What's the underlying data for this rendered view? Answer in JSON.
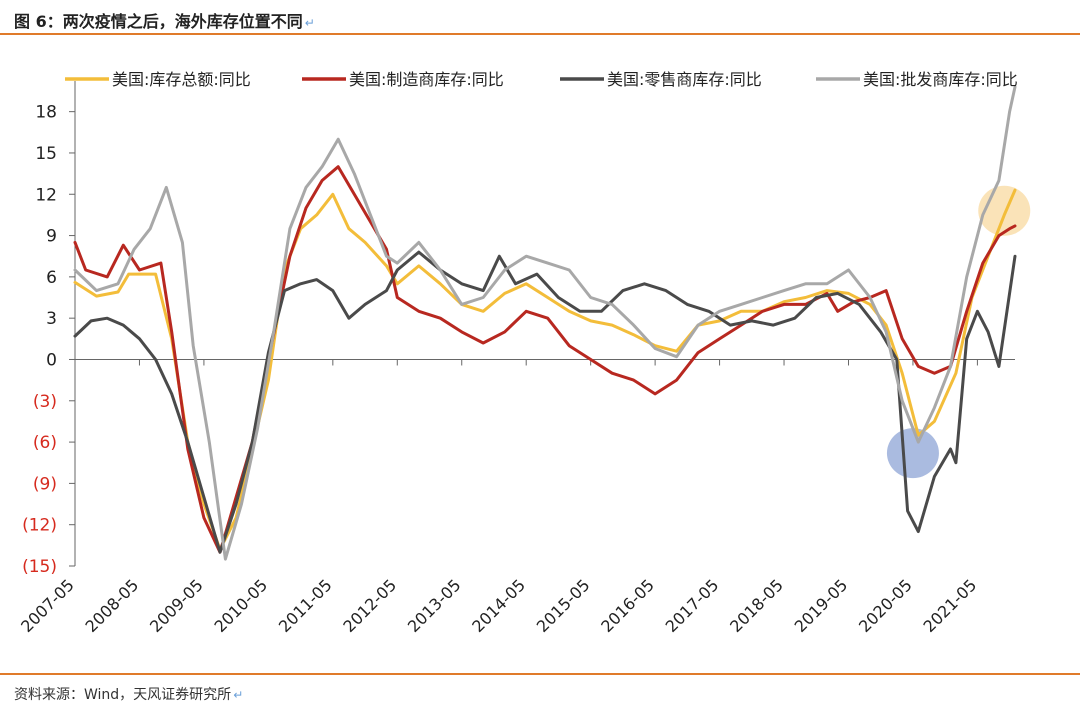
{
  "header": {
    "title": "图 6：两次疫情之后，海外库存位置不同",
    "para_mark": "↵"
  },
  "footer": {
    "source": "资料来源：Wind，天风证券研究所",
    "para_mark": "↵"
  },
  "chart_data": {
    "type": "line",
    "title": "",
    "xlabel": "",
    "ylabel": "",
    "ylim": [
      -15,
      19.5
    ],
    "yticks": [
      18,
      15,
      12,
      9,
      6,
      3,
      0,
      -3,
      -6,
      -9,
      -12,
      -15
    ],
    "ytick_labels": [
      "18",
      "15",
      "12",
      "9",
      "6",
      "3",
      "0",
      "(3)",
      "(6)",
      "(9)",
      "(12)",
      "(15)"
    ],
    "xlim": [
      "2007-05",
      "2021-12"
    ],
    "xticks": [
      "2007-05",
      "2008-05",
      "2009-05",
      "2010-05",
      "2011-05",
      "2012-05",
      "2013-05",
      "2014-05",
      "2015-05",
      "2016-05",
      "2017-05",
      "2018-05",
      "2019-05",
      "2020-05",
      "2021-05"
    ],
    "grid": false,
    "legend_position": "top",
    "series": [
      {
        "name": "美国:库存总额:同比",
        "color": "#f3bd3a",
        "points": [
          [
            "2007-05",
            5.6
          ],
          [
            "2007-09",
            4.6
          ],
          [
            "2008-01",
            4.9
          ],
          [
            "2008-03",
            6.2
          ],
          [
            "2008-06",
            6.2
          ],
          [
            "2008-08",
            6.2
          ],
          [
            "2008-11",
            1.5
          ],
          [
            "2009-02",
            -6.0
          ],
          [
            "2009-05",
            -10.5
          ],
          [
            "2009-08",
            -13.8
          ],
          [
            "2009-11",
            -11.5
          ],
          [
            "2010-02",
            -6.5
          ],
          [
            "2010-05",
            -1.5
          ],
          [
            "2010-08",
            6.5
          ],
          [
            "2010-11",
            9.5
          ],
          [
            "2011-02",
            10.5
          ],
          [
            "2011-05",
            12.0
          ],
          [
            "2011-08",
            9.5
          ],
          [
            "2011-11",
            8.5
          ],
          [
            "2012-03",
            6.8
          ],
          [
            "2012-05",
            5.5
          ],
          [
            "2012-09",
            6.8
          ],
          [
            "2013-01",
            5.5
          ],
          [
            "2013-05",
            4.0
          ],
          [
            "2013-09",
            3.5
          ],
          [
            "2014-01",
            4.8
          ],
          [
            "2014-05",
            5.5
          ],
          [
            "2014-09",
            4.5
          ],
          [
            "2015-01",
            3.5
          ],
          [
            "2015-05",
            2.8
          ],
          [
            "2015-09",
            2.5
          ],
          [
            "2016-01",
            1.8
          ],
          [
            "2016-05",
            1.0
          ],
          [
            "2016-09",
            0.6
          ],
          [
            "2017-01",
            2.5
          ],
          [
            "2017-05",
            2.8
          ],
          [
            "2017-09",
            3.5
          ],
          [
            "2018-01",
            3.5
          ],
          [
            "2018-05",
            4.2
          ],
          [
            "2018-09",
            4.5
          ],
          [
            "2019-01",
            5.0
          ],
          [
            "2019-05",
            4.8
          ],
          [
            "2019-09",
            4.0
          ],
          [
            "2019-12",
            2.5
          ],
          [
            "2020-03",
            -1.0
          ],
          [
            "2020-06",
            -5.5
          ],
          [
            "2020-09",
            -4.5
          ],
          [
            "2021-01",
            -1.0
          ],
          [
            "2021-04",
            4.5
          ],
          [
            "2021-07",
            7.5
          ],
          [
            "2021-10",
            10.5
          ],
          [
            "2021-12",
            12.3
          ]
        ]
      },
      {
        "name": "美国:制造商库存:同比",
        "color": "#b82820",
        "points": [
          [
            "2007-05",
            8.5
          ],
          [
            "2007-07",
            6.5
          ],
          [
            "2007-11",
            6.0
          ],
          [
            "2008-02",
            8.3
          ],
          [
            "2008-05",
            6.5
          ],
          [
            "2008-09",
            7.0
          ],
          [
            "2008-11",
            2.0
          ],
          [
            "2009-02",
            -6.5
          ],
          [
            "2009-05",
            -11.5
          ],
          [
            "2009-08",
            -14.0
          ],
          [
            "2009-11",
            -10.0
          ],
          [
            "2010-02",
            -6.0
          ],
          [
            "2010-05",
            0.0
          ],
          [
            "2010-09",
            7.5
          ],
          [
            "2010-12",
            11.0
          ],
          [
            "2011-03",
            13.0
          ],
          [
            "2011-06",
            14.0
          ],
          [
            "2011-09",
            12.0
          ],
          [
            "2011-12",
            10.0
          ],
          [
            "2012-03",
            8.0
          ],
          [
            "2012-05",
            4.5
          ],
          [
            "2012-09",
            3.5
          ],
          [
            "2013-01",
            3.0
          ],
          [
            "2013-05",
            2.0
          ],
          [
            "2013-09",
            1.2
          ],
          [
            "2014-01",
            2.0
          ],
          [
            "2014-05",
            3.5
          ],
          [
            "2014-09",
            3.0
          ],
          [
            "2015-01",
            1.0
          ],
          [
            "2015-05",
            0.0
          ],
          [
            "2015-09",
            -1.0
          ],
          [
            "2016-01",
            -1.5
          ],
          [
            "2016-05",
            -2.5
          ],
          [
            "2016-09",
            -1.5
          ],
          [
            "2017-01",
            0.5
          ],
          [
            "2017-05",
            1.5
          ],
          [
            "2017-09",
            2.5
          ],
          [
            "2018-01",
            3.5
          ],
          [
            "2018-05",
            4.0
          ],
          [
            "2018-09",
            4.0
          ],
          [
            "2019-01",
            4.8
          ],
          [
            "2019-03",
            3.5
          ],
          [
            "2019-06",
            4.2
          ],
          [
            "2019-09",
            4.5
          ],
          [
            "2019-12",
            5.0
          ],
          [
            "2020-03",
            1.5
          ],
          [
            "2020-06",
            -0.5
          ],
          [
            "2020-09",
            -1.0
          ],
          [
            "2020-12",
            -0.5
          ],
          [
            "2021-03",
            3.5
          ],
          [
            "2021-06",
            7.0
          ],
          [
            "2021-09",
            9.0
          ],
          [
            "2021-11",
            9.5
          ],
          [
            "2021-12",
            9.7
          ]
        ]
      },
      {
        "name": "美国:零售商库存:同比",
        "color": "#4a4a4a",
        "points": [
          [
            "2007-05",
            1.7
          ],
          [
            "2007-08",
            2.8
          ],
          [
            "2007-11",
            3.0
          ],
          [
            "2008-02",
            2.5
          ],
          [
            "2008-05",
            1.5
          ],
          [
            "2008-08",
            0.0
          ],
          [
            "2008-11",
            -2.5
          ],
          [
            "2009-02",
            -6.0
          ],
          [
            "2009-05",
            -10.0
          ],
          [
            "2009-08",
            -14.0
          ],
          [
            "2009-11",
            -10.5
          ],
          [
            "2010-02",
            -6.0
          ],
          [
            "2010-05",
            0.5
          ],
          [
            "2010-08",
            5.0
          ],
          [
            "2010-11",
            5.5
          ],
          [
            "2011-02",
            5.8
          ],
          [
            "2011-05",
            5.0
          ],
          [
            "2011-08",
            3.0
          ],
          [
            "2011-11",
            4.0
          ],
          [
            "2012-03",
            5.0
          ],
          [
            "2012-05",
            6.5
          ],
          [
            "2012-09",
            7.8
          ],
          [
            "2013-01",
            6.5
          ],
          [
            "2013-05",
            5.5
          ],
          [
            "2013-09",
            5.0
          ],
          [
            "2013-12",
            7.5
          ],
          [
            "2014-03",
            5.5
          ],
          [
            "2014-07",
            6.2
          ],
          [
            "2014-11",
            4.5
          ],
          [
            "2015-03",
            3.5
          ],
          [
            "2015-07",
            3.5
          ],
          [
            "2015-11",
            5.0
          ],
          [
            "2016-03",
            5.5
          ],
          [
            "2016-07",
            5.0
          ],
          [
            "2016-11",
            4.0
          ],
          [
            "2017-03",
            3.5
          ],
          [
            "2017-07",
            2.5
          ],
          [
            "2017-11",
            2.8
          ],
          [
            "2018-03",
            2.5
          ],
          [
            "2018-07",
            3.0
          ],
          [
            "2018-11",
            4.5
          ],
          [
            "2019-03",
            4.8
          ],
          [
            "2019-07",
            4.0
          ],
          [
            "2019-11",
            2.0
          ],
          [
            "2020-02",
            0.0
          ],
          [
            "2020-04",
            -11.0
          ],
          [
            "2020-06",
            -12.5
          ],
          [
            "2020-09",
            -8.5
          ],
          [
            "2020-12",
            -6.5
          ],
          [
            "2021-01",
            -7.5
          ],
          [
            "2021-03",
            1.5
          ],
          [
            "2021-05",
            3.5
          ],
          [
            "2021-07",
            2.0
          ],
          [
            "2021-09",
            -0.5
          ],
          [
            "2021-12",
            7.5
          ]
        ]
      },
      {
        "name": "美国:批发商库存:同比",
        "color": "#a8a8a8",
        "points": [
          [
            "2007-05",
            6.5
          ],
          [
            "2007-09",
            5.0
          ],
          [
            "2008-01",
            5.5
          ],
          [
            "2008-04",
            8.0
          ],
          [
            "2008-07",
            9.5
          ],
          [
            "2008-10",
            12.5
          ],
          [
            "2009-01",
            8.5
          ],
          [
            "2009-03",
            1.0
          ],
          [
            "2009-06",
            -6.0
          ],
          [
            "2009-09",
            -14.5
          ],
          [
            "2009-12",
            -10.5
          ],
          [
            "2010-03",
            -5.0
          ],
          [
            "2010-06",
            2.0
          ],
          [
            "2010-09",
            9.5
          ],
          [
            "2010-12",
            12.5
          ],
          [
            "2011-03",
            14.0
          ],
          [
            "2011-06",
            16.0
          ],
          [
            "2011-09",
            13.5
          ],
          [
            "2011-12",
            10.5
          ],
          [
            "2012-03",
            7.5
          ],
          [
            "2012-05",
            7.0
          ],
          [
            "2012-09",
            8.5
          ],
          [
            "2013-01",
            6.5
          ],
          [
            "2013-05",
            4.0
          ],
          [
            "2013-09",
            4.5
          ],
          [
            "2014-01",
            6.5
          ],
          [
            "2014-05",
            7.5
          ],
          [
            "2014-09",
            7.0
          ],
          [
            "2015-01",
            6.5
          ],
          [
            "2015-05",
            4.5
          ],
          [
            "2015-09",
            4.0
          ],
          [
            "2016-01",
            2.5
          ],
          [
            "2016-05",
            0.8
          ],
          [
            "2016-09",
            0.2
          ],
          [
            "2017-01",
            2.5
          ],
          [
            "2017-05",
            3.5
          ],
          [
            "2017-09",
            4.0
          ],
          [
            "2018-01",
            4.5
          ],
          [
            "2018-05",
            5.0
          ],
          [
            "2018-09",
            5.5
          ],
          [
            "2019-01",
            5.5
          ],
          [
            "2019-05",
            6.5
          ],
          [
            "2019-09",
            4.5
          ],
          [
            "2019-12",
            2.0
          ],
          [
            "2020-03",
            -3.0
          ],
          [
            "2020-06",
            -6.0
          ],
          [
            "2020-09",
            -3.5
          ],
          [
            "2020-12",
            -0.5
          ],
          [
            "2021-03",
            6.0
          ],
          [
            "2021-06",
            10.5
          ],
          [
            "2021-09",
            13.0
          ],
          [
            "2021-11",
            18.0
          ],
          [
            "2021-12",
            19.8
          ]
        ]
      }
    ],
    "highlights": [
      {
        "color": "#f8d9a0",
        "x": "2021-10",
        "y": 10.8
      },
      {
        "color": "#8ea4d6",
        "x": "2020-05",
        "y": -6.8
      }
    ]
  }
}
